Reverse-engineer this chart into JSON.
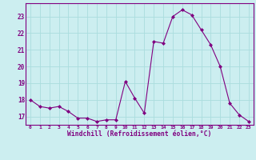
{
  "x": [
    0,
    1,
    2,
    3,
    4,
    5,
    6,
    7,
    8,
    9,
    10,
    11,
    12,
    13,
    14,
    15,
    16,
    17,
    18,
    19,
    20,
    21,
    22,
    23
  ],
  "y": [
    18.0,
    17.6,
    17.5,
    17.6,
    17.3,
    16.9,
    16.9,
    16.7,
    16.8,
    16.8,
    19.1,
    18.1,
    17.2,
    21.5,
    21.4,
    23.0,
    23.4,
    23.1,
    22.2,
    21.3,
    20.0,
    17.8,
    17.1,
    16.7
  ],
  "line_color": "#800080",
  "marker_color": "#800080",
  "bg_color": "#cceef0",
  "grid_color": "#aadddd",
  "xlabel": "Windchill (Refroidissement éolien,°C)",
  "xlabel_color": "#800080",
  "tick_color": "#800080",
  "ylim": [
    16.5,
    23.8
  ],
  "yticks": [
    17,
    18,
    19,
    20,
    21,
    22,
    23
  ],
  "xticks": [
    0,
    1,
    2,
    3,
    4,
    5,
    6,
    7,
    8,
    9,
    10,
    11,
    12,
    13,
    14,
    15,
    16,
    17,
    18,
    19,
    20,
    21,
    22,
    23
  ],
  "spine_color": "#800080"
}
